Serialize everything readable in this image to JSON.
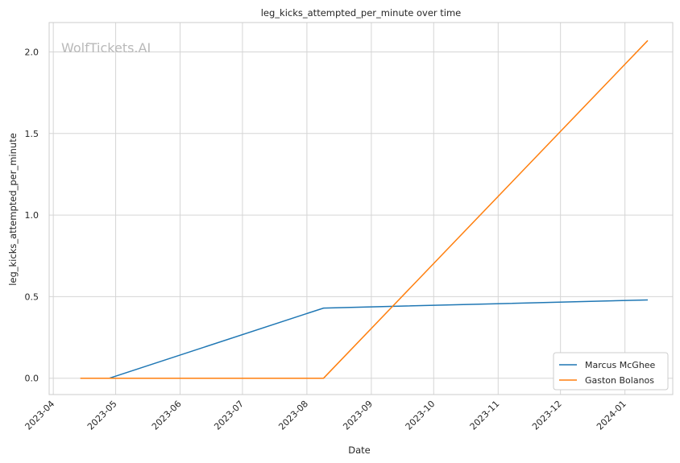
{
  "chart_data": {
    "type": "line",
    "title": "leg_kicks_attempted_per_minute over time",
    "xlabel": "Date",
    "ylabel": "leg_kicks_attempted_per_minute",
    "watermark": "WolfTickets.AI",
    "x_ticks": [
      "2023-04",
      "2023-05",
      "2023-06",
      "2023-07",
      "2023-08",
      "2023-09",
      "2023-10",
      "2023-11",
      "2023-12",
      "2024-01"
    ],
    "y_ticks": [
      "0.0",
      "0.5",
      "1.0",
      "1.5",
      "2.0"
    ],
    "xlim": [
      "2023-03-30",
      "2024-01-24"
    ],
    "ylim": [
      -0.1,
      2.18
    ],
    "grid": true,
    "legend_position": "lower-right",
    "series": [
      {
        "name": "Marcus McGhee",
        "color": "#1f77b4",
        "points": [
          {
            "x": "2023-04-28",
            "y": 0.0
          },
          {
            "x": "2023-08-09",
            "y": 0.43
          },
          {
            "x": "2024-01-12",
            "y": 0.48
          }
        ]
      },
      {
        "name": "Gaston Bolanos",
        "color": "#ff7f0e",
        "points": [
          {
            "x": "2023-04-14",
            "y": 0.0
          },
          {
            "x": "2023-08-09",
            "y": 0.0
          },
          {
            "x": "2024-01-12",
            "y": 2.07
          }
        ]
      }
    ]
  }
}
